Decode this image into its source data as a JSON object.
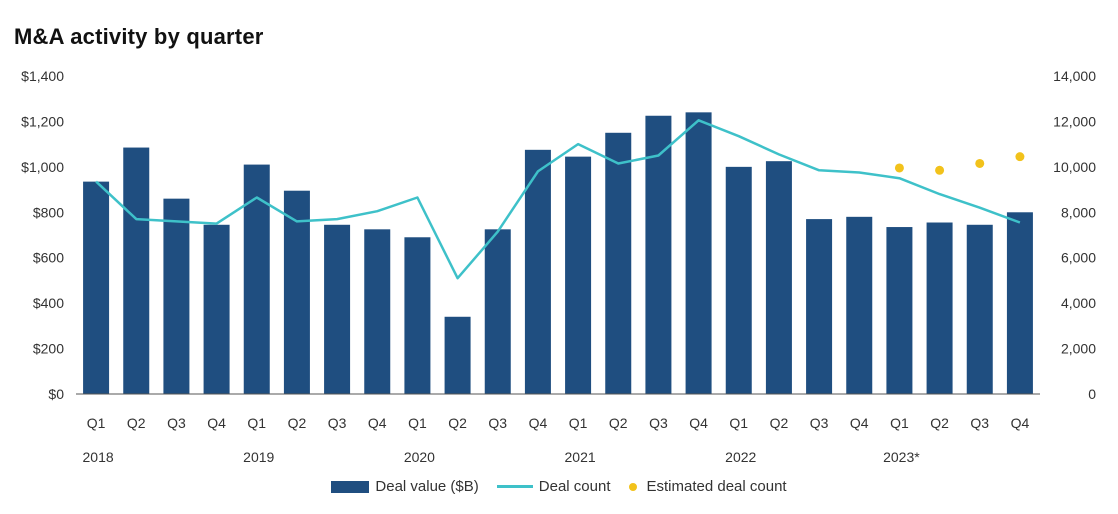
{
  "chart_data": {
    "type": "bar",
    "title": "M&A activity by quarter",
    "categories": [
      "Q1",
      "Q2",
      "Q3",
      "Q4",
      "Q1",
      "Q2",
      "Q3",
      "Q4",
      "Q1",
      "Q2",
      "Q3",
      "Q4",
      "Q1",
      "Q2",
      "Q3",
      "Q4",
      "Q1",
      "Q2",
      "Q3",
      "Q4",
      "Q1",
      "Q2",
      "Q3",
      "Q4"
    ],
    "years": [
      {
        "label": "2018",
        "start_index": 0
      },
      {
        "label": "2019",
        "start_index": 4
      },
      {
        "label": "2020",
        "start_index": 8
      },
      {
        "label": "2021",
        "start_index": 12
      },
      {
        "label": "2022",
        "start_index": 16
      },
      {
        "label": "2023*",
        "start_index": 20
      }
    ],
    "series": [
      {
        "name": "Deal value ($B)",
        "kind": "bar",
        "axis": "left",
        "color": "#1f4e80",
        "values": [
          935,
          1085,
          860,
          745,
          1010,
          895,
          745,
          725,
          690,
          340,
          725,
          1075,
          1045,
          1150,
          1225,
          1240,
          1000,
          1025,
          770,
          780,
          735,
          755,
          745,
          800
        ]
      },
      {
        "name": "Deal count",
        "kind": "line",
        "axis": "right",
        "color": "#3ec1c9",
        "values": [
          9350,
          7700,
          7600,
          7500,
          8650,
          7600,
          7700,
          8050,
          8650,
          5100,
          7150,
          9800,
          11000,
          10150,
          10500,
          12050,
          11350,
          10550,
          9850,
          9750,
          9500,
          8800,
          8200,
          7550
        ]
      },
      {
        "name": "Estimated deal count",
        "kind": "scatter",
        "axis": "right",
        "color": "#f2c21b",
        "start_index": 20,
        "values": [
          9950,
          9850,
          10150,
          10450
        ]
      }
    ],
    "y_left": {
      "min": 0,
      "max": 1400,
      "ticks": [
        0,
        200,
        400,
        600,
        800,
        1000,
        1200,
        1400
      ],
      "tick_labels": [
        "$0",
        "$200",
        "$400",
        "$600",
        "$800",
        "$1,000",
        "$1,200",
        "$1,400"
      ]
    },
    "y_right": {
      "min": 0,
      "max": 14000,
      "ticks": [
        0,
        2000,
        4000,
        6000,
        8000,
        10000,
        12000,
        14000
      ],
      "tick_labels": [
        "0",
        "2,000",
        "4,000",
        "6,000",
        "8,000",
        "10,000",
        "12,000",
        "14,000"
      ]
    },
    "legend": {
      "placement": "bottom-center",
      "items": [
        "Deal value ($B)",
        "Deal count",
        "Estimated deal count"
      ]
    }
  }
}
